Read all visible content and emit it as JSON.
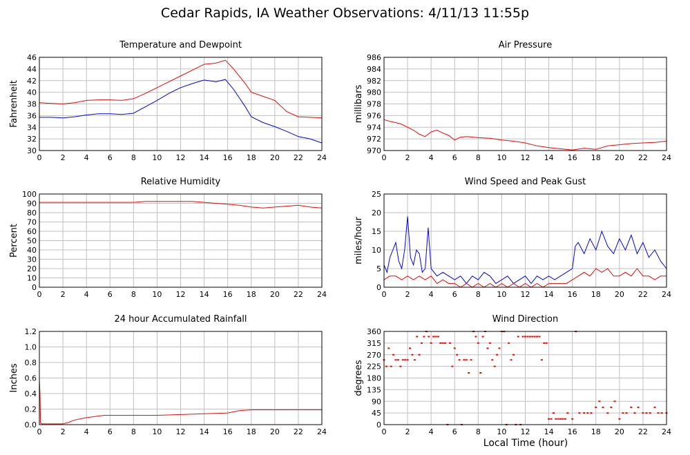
{
  "title": "Cedar Rapids, IA Weather Observations: 4/11/13 11:55p",
  "xlabel": "Local Time (hour)",
  "colors": {
    "primary": "#ff0000",
    "secondary": "#0000ff",
    "grid": "#c0c0c0"
  },
  "chart_data": [
    {
      "id": "temp",
      "type": "line",
      "title": "Temperature and Dewpoint",
      "ylabel": "Fahrenheit",
      "xlim": [
        0,
        24
      ],
      "ylim": [
        30,
        46
      ],
      "x_ticks": [
        0,
        2,
        4,
        6,
        8,
        10,
        12,
        14,
        16,
        18,
        20,
        22,
        24
      ],
      "y_ticks": [
        30,
        32,
        34,
        36,
        38,
        40,
        42,
        44,
        46
      ],
      "grid": true,
      "series": [
        {
          "color": "#ff0000",
          "x": [
            0,
            1,
            2,
            3,
            4,
            5,
            6,
            7,
            8,
            9,
            10,
            11,
            12,
            13,
            14,
            15,
            15.8,
            16.5,
            17.5,
            18,
            19,
            20,
            21,
            22,
            23,
            24
          ],
          "y": [
            38.2,
            38.1,
            38.0,
            38.2,
            38.6,
            38.7,
            38.7,
            38.6,
            38.9,
            39.8,
            40.8,
            41.8,
            42.8,
            43.8,
            44.8,
            45.0,
            45.5,
            44.0,
            41.5,
            40.0,
            39.3,
            38.6,
            36.7,
            35.8,
            35.7,
            35.6
          ]
        },
        {
          "color": "#0000ff",
          "x": [
            0,
            1,
            2,
            3,
            4,
            5,
            6,
            7,
            8,
            9,
            10,
            11,
            12,
            13,
            14,
            15,
            15.8,
            16.5,
            17.5,
            18,
            19,
            20,
            21,
            22,
            23,
            24
          ],
          "y": [
            35.7,
            35.7,
            35.6,
            35.8,
            36.1,
            36.3,
            36.3,
            36.2,
            36.4,
            37.5,
            38.6,
            39.8,
            40.8,
            41.5,
            42.1,
            41.8,
            42.2,
            40.5,
            37.5,
            35.8,
            34.8,
            34.1,
            33.3,
            32.4,
            32.0,
            31.3
          ]
        }
      ]
    },
    {
      "id": "pressure",
      "type": "line",
      "title": "Air Pressure",
      "ylabel": "millibars",
      "xlim": [
        0,
        24
      ],
      "ylim": [
        970,
        986
      ],
      "x_ticks": [
        0,
        2,
        4,
        6,
        8,
        10,
        12,
        14,
        16,
        18,
        20,
        22,
        24
      ],
      "y_ticks": [
        970,
        972,
        974,
        976,
        978,
        980,
        982,
        984,
        986
      ],
      "grid": true,
      "series": [
        {
          "color": "#ff0000",
          "x": [
            0,
            0.5,
            1,
            1.5,
            2,
            2.5,
            3,
            3.5,
            4,
            4.5,
            5,
            5.5,
            6,
            6.5,
            7,
            8,
            9,
            10,
            11,
            12,
            13,
            14,
            15,
            16,
            17,
            18,
            19,
            20,
            21,
            22,
            23,
            24
          ],
          "y": [
            975.3,
            975.0,
            974.8,
            974.5,
            974.0,
            973.5,
            972.8,
            972.4,
            973.2,
            973.5,
            973.0,
            972.6,
            971.8,
            972.3,
            972.4,
            972.2,
            972.1,
            971.8,
            971.6,
            971.3,
            970.8,
            970.5,
            970.3,
            970.1,
            970.4,
            970.2,
            970.8,
            971.0,
            971.2,
            971.3,
            971.4,
            971.6
          ]
        }
      ]
    },
    {
      "id": "rh",
      "type": "line",
      "title": "Relative Humidity",
      "ylabel": "Percent",
      "xlim": [
        0,
        24
      ],
      "ylim": [
        0,
        100
      ],
      "x_ticks": [
        0,
        2,
        4,
        6,
        8,
        10,
        12,
        14,
        16,
        18,
        20,
        22,
        24
      ],
      "y_ticks": [
        0,
        10,
        20,
        30,
        40,
        50,
        60,
        70,
        80,
        90,
        100
      ],
      "grid": true,
      "series": [
        {
          "color": "#ff0000",
          "x": [
            0,
            2,
            4,
            6,
            8,
            9,
            10,
            11,
            12,
            13,
            14,
            15,
            16,
            17,
            18,
            19,
            20,
            21,
            22,
            23,
            24
          ],
          "y": [
            91,
            91,
            91,
            91,
            91,
            92,
            92,
            92,
            92,
            92,
            91,
            90,
            89,
            88,
            86,
            85,
            86,
            87,
            88,
            86,
            85
          ]
        }
      ]
    },
    {
      "id": "wind",
      "type": "line",
      "title": "Wind Speed and Peak Gust",
      "ylabel": "miles/hour",
      "xlim": [
        0,
        24
      ],
      "ylim": [
        0,
        25
      ],
      "x_ticks": [
        0,
        2,
        4,
        6,
        8,
        10,
        12,
        14,
        16,
        18,
        20,
        22,
        24
      ],
      "y_ticks": [
        0,
        5,
        10,
        15,
        20,
        25
      ],
      "grid": true,
      "series": [
        {
          "color": "#0000ff",
          "x": [
            0,
            0.25,
            0.5,
            0.75,
            1,
            1.25,
            1.5,
            1.75,
            2,
            2.25,
            2.5,
            2.75,
            3,
            3.25,
            3.5,
            3.75,
            4,
            4.5,
            5,
            5.5,
            6,
            6.5,
            7,
            7.5,
            8,
            8.5,
            9,
            9.5,
            10,
            10.5,
            11,
            11.5,
            12,
            12.5,
            13,
            13.5,
            14,
            14.5,
            15,
            15.5,
            16,
            16.25,
            16.5,
            17,
            17.5,
            18,
            18.5,
            19,
            19.5,
            20,
            20.5,
            21,
            21.5,
            22,
            22.5,
            23,
            23.5,
            24
          ],
          "y": [
            6,
            4,
            8,
            10,
            12,
            7,
            5,
            10,
            19,
            8,
            6,
            10,
            9,
            4,
            5,
            16,
            5,
            3,
            4,
            3,
            2,
            3,
            1,
            3,
            2,
            4,
            3,
            1,
            2,
            3,
            1,
            2,
            3,
            1,
            3,
            2,
            3,
            2,
            3,
            4,
            5,
            11,
            12,
            9,
            13,
            10,
            15,
            11,
            9,
            13,
            10,
            14,
            9,
            12,
            8,
            10,
            7,
            5
          ]
        },
        {
          "color": "#ff0000",
          "x": [
            0,
            0.5,
            1,
            1.5,
            2,
            2.5,
            3,
            3.5,
            4,
            4.5,
            5,
            5.5,
            6,
            6.5,
            7,
            7.5,
            8,
            8.5,
            9,
            9.5,
            10,
            10.5,
            11,
            11.5,
            12,
            12.5,
            13,
            13.5,
            14,
            14.5,
            15,
            15.5,
            16,
            16.5,
            17,
            17.5,
            18,
            18.5,
            19,
            19.5,
            20,
            20.5,
            21,
            21.5,
            22,
            22.5,
            23,
            23.5,
            24
          ],
          "y": [
            2,
            3,
            3,
            2,
            3,
            2,
            3,
            2,
            3,
            1,
            2,
            1,
            1,
            0,
            1,
            0,
            1,
            0,
            1,
            0,
            1,
            0,
            1,
            0,
            1,
            0,
            1,
            0,
            1,
            1,
            1,
            1,
            2,
            3,
            4,
            3,
            5,
            4,
            5,
            3,
            3,
            4,
            3,
            5,
            3,
            3,
            2,
            3,
            3
          ]
        }
      ]
    },
    {
      "id": "rain",
      "type": "line",
      "title": "24 hour Accumulated Rainfall",
      "ylabel": "Inches",
      "xlim": [
        0,
        24
      ],
      "ylim": [
        0,
        1.2
      ],
      "x_ticks": [
        0,
        2,
        4,
        6,
        8,
        10,
        12,
        14,
        16,
        18,
        20,
        22,
        24
      ],
      "y_ticks": [
        0,
        0.2,
        0.4,
        0.6,
        0.8,
        1,
        1.2
      ],
      "y_tick_labels": [
        "0.0",
        "0.2",
        "0.4",
        "0.6",
        "0.8",
        "1.0",
        "1.2"
      ],
      "grid": true,
      "series": [
        {
          "color": "#ff0000",
          "x": [
            0,
            0.05,
            0.1,
            0.2,
            2,
            2.5,
            3,
            4,
            5,
            5.5,
            6,
            8,
            10,
            12,
            14,
            16,
            17,
            18,
            20,
            22,
            24
          ],
          "y": [
            0.58,
            0.4,
            0.02,
            0.01,
            0.01,
            0.03,
            0.06,
            0.09,
            0.11,
            0.12,
            0.12,
            0.12,
            0.12,
            0.13,
            0.14,
            0.15,
            0.18,
            0.19,
            0.19,
            0.19,
            0.19
          ]
        }
      ]
    },
    {
      "id": "dir",
      "type": "scatter",
      "title": "Wind Direction",
      "ylabel": "degrees",
      "xlim": [
        0,
        24
      ],
      "ylim": [
        0,
        360
      ],
      "x_ticks": [
        0,
        2,
        4,
        6,
        8,
        10,
        12,
        14,
        16,
        18,
        20,
        22,
        24
      ],
      "y_ticks": [
        0,
        45,
        90,
        135,
        180,
        225,
        270,
        315,
        360
      ],
      "grid": true,
      "series": [
        {
          "color": "#ff0000",
          "x": [
            0,
            0.2,
            0.4,
            0.6,
            0.8,
            1.0,
            1.2,
            1.4,
            1.6,
            1.8,
            2.0,
            2.2,
            2.4,
            2.6,
            2.8,
            3.0,
            3.2,
            3.4,
            3.6,
            3.8,
            4.0,
            4.2,
            4.4,
            4.6,
            4.8,
            5.0,
            5.2,
            5.4,
            5.6,
            5.8,
            6.0,
            6.2,
            6.4,
            6.6,
            6.8,
            7.0,
            7.2,
            7.4,
            7.6,
            7.8,
            8.0,
            8.2,
            8.4,
            8.6,
            8.8,
            9.0,
            9.2,
            9.4,
            9.6,
            9.8,
            10.0,
            10.2,
            10.4,
            10.6,
            10.8,
            11.0,
            11.2,
            11.4,
            11.6,
            11.8,
            12.0,
            12.2,
            12.4,
            12.6,
            12.8,
            13.0,
            13.2,
            13.4,
            13.6,
            13.8,
            14.0,
            14.2,
            14.4,
            14.6,
            14.8,
            15.0,
            15.2,
            15.4,
            15.6,
            16.0,
            16.3,
            16.6,
            17.0,
            17.3,
            17.6,
            18.0,
            18.3,
            18.6,
            19.0,
            19.3,
            19.6,
            20.0,
            20.3,
            20.6,
            21.0,
            21.3,
            21.6,
            22.0,
            22.3,
            22.6,
            23.0,
            23.3,
            23.6,
            24.0
          ],
          "y": [
            250,
            225,
            295,
            225,
            270,
            250,
            250,
            225,
            250,
            250,
            250,
            295,
            270,
            250,
            340,
            270,
            315,
            340,
            360,
            340,
            315,
            340,
            340,
            340,
            315,
            315,
            315,
            0,
            315,
            225,
            295,
            270,
            250,
            0,
            250,
            250,
            200,
            250,
            360,
            340,
            315,
            200,
            340,
            360,
            295,
            315,
            250,
            225,
            270,
            295,
            360,
            360,
            0,
            315,
            250,
            270,
            0,
            340,
            0,
            340,
            340,
            340,
            340,
            340,
            340,
            340,
            340,
            250,
            315,
            315,
            22,
            22,
            45,
            22,
            22,
            22,
            22,
            22,
            45,
            22,
            360,
            45,
            45,
            45,
            45,
            67,
            90,
            67,
            45,
            67,
            90,
            22,
            45,
            45,
            67,
            45,
            67,
            45,
            45,
            45,
            67,
            45,
            45,
            45
          ]
        }
      ]
    }
  ]
}
